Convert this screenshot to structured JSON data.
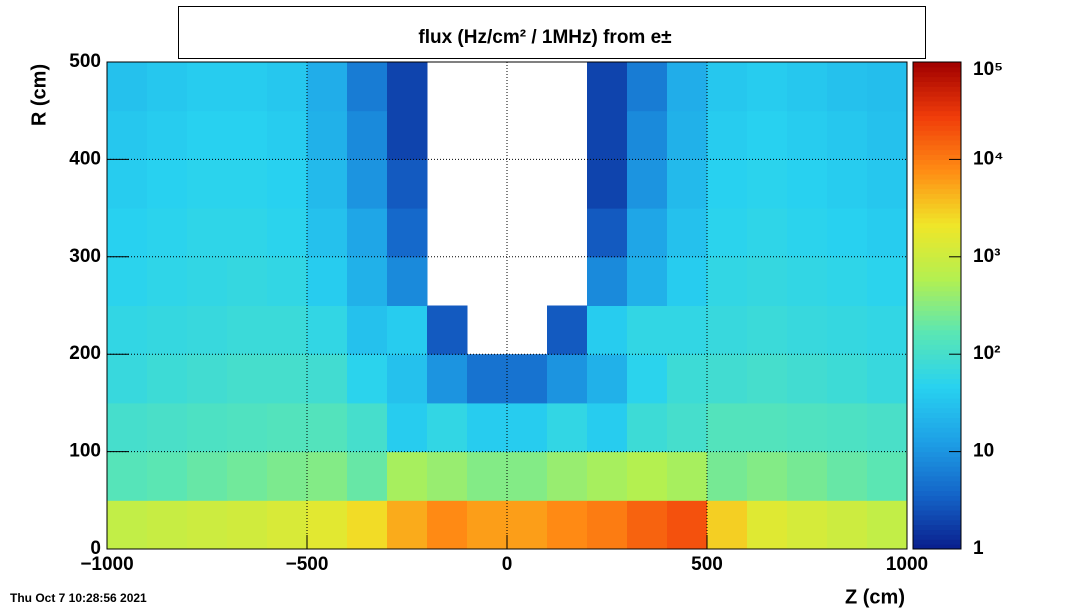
{
  "chart_data": {
    "type": "heatmap",
    "title": "flux (Hz/cm² / 1MHz) from e±",
    "x_label": "Z (cm)",
    "y_label": "R (cm)",
    "timestamp": "Thu Oct  7 10:28:56 2021",
    "xlim": [
      -1000,
      1000
    ],
    "xticks": [
      {
        "value": -1000,
        "label": "−1000"
      },
      {
        "value": -500,
        "label": "−500"
      },
      0,
      500,
      1000
    ],
    "ylim": [
      0,
      500
    ],
    "yticks": [
      0,
      100,
      200,
      300,
      400,
      500
    ],
    "zlim": [
      1,
      100000
    ],
    "zscale": "log",
    "zticks": [
      1,
      10,
      {
        "value": 100,
        "label": "10²"
      },
      {
        "value": 1000,
        "label": "10³"
      },
      {
        "value": 10000,
        "label": "10⁴"
      },
      {
        "value": 100000,
        "label": "10⁵"
      }
    ],
    "grid": true,
    "colorscale": [
      "#0a1e8c",
      "#1464c8",
      "#1ea0e6",
      "#28d2f0",
      "#5ae6b4",
      "#b4f050",
      "#f0e628",
      "#ff8c14",
      "#f03c0a",
      "#a00000"
    ],
    "xbins": [
      -1000,
      -900,
      -800,
      -700,
      -600,
      -500,
      -400,
      -300,
      -200,
      -100,
      0,
      100,
      200,
      300,
      400,
      500,
      600,
      700,
      800,
      900,
      1000
    ],
    "ybins": [
      0,
      50,
      100,
      150,
      200,
      250,
      300,
      350,
      400,
      450,
      500
    ],
    "z": [
      [
        800,
        900,
        1000,
        1100,
        1300,
        1600,
        2500,
        5000,
        8000,
        6000,
        6000,
        8000,
        10000,
        15000,
        20000,
        3000,
        1500,
        1200,
        1000,
        800
      ],
      [
        150,
        170,
        200,
        230,
        270,
        300,
        200,
        500,
        400,
        300,
        300,
        400,
        500,
        600,
        500,
        250,
        300,
        250,
        200,
        170
      ],
      [
        100,
        110,
        120,
        130,
        140,
        140,
        100,
        40,
        60,
        40,
        40,
        60,
        40,
        80,
        100,
        140,
        140,
        130,
        120,
        110
      ],
      [
        70,
        80,
        90,
        100,
        100,
        90,
        50,
        30,
        10,
        5,
        5,
        10,
        20,
        50,
        80,
        90,
        100,
        90,
        80,
        70
      ],
      [
        60,
        65,
        70,
        75,
        75,
        60,
        30,
        40,
        3,
        null,
        null,
        3,
        40,
        60,
        60,
        70,
        75,
        70,
        65,
        60
      ],
      [
        50,
        55,
        60,
        65,
        60,
        40,
        20,
        8,
        null,
        null,
        null,
        null,
        8,
        20,
        40,
        60,
        65,
        60,
        55,
        50
      ],
      [
        45,
        50,
        55,
        55,
        50,
        30,
        15,
        4,
        null,
        null,
        null,
        null,
        3,
        15,
        30,
        50,
        55,
        50,
        45,
        40
      ],
      [
        40,
        45,
        50,
        50,
        45,
        25,
        10,
        3,
        null,
        null,
        null,
        null,
        2,
        10,
        25,
        45,
        50,
        45,
        40,
        35
      ],
      [
        35,
        40,
        45,
        45,
        40,
        20,
        8,
        2,
        null,
        null,
        null,
        null,
        2,
        8,
        20,
        40,
        45,
        40,
        35,
        30
      ],
      [
        30,
        35,
        40,
        40,
        35,
        18,
        6,
        2,
        null,
        null,
        null,
        null,
        2,
        6,
        18,
        35,
        40,
        35,
        30,
        28
      ]
    ]
  }
}
